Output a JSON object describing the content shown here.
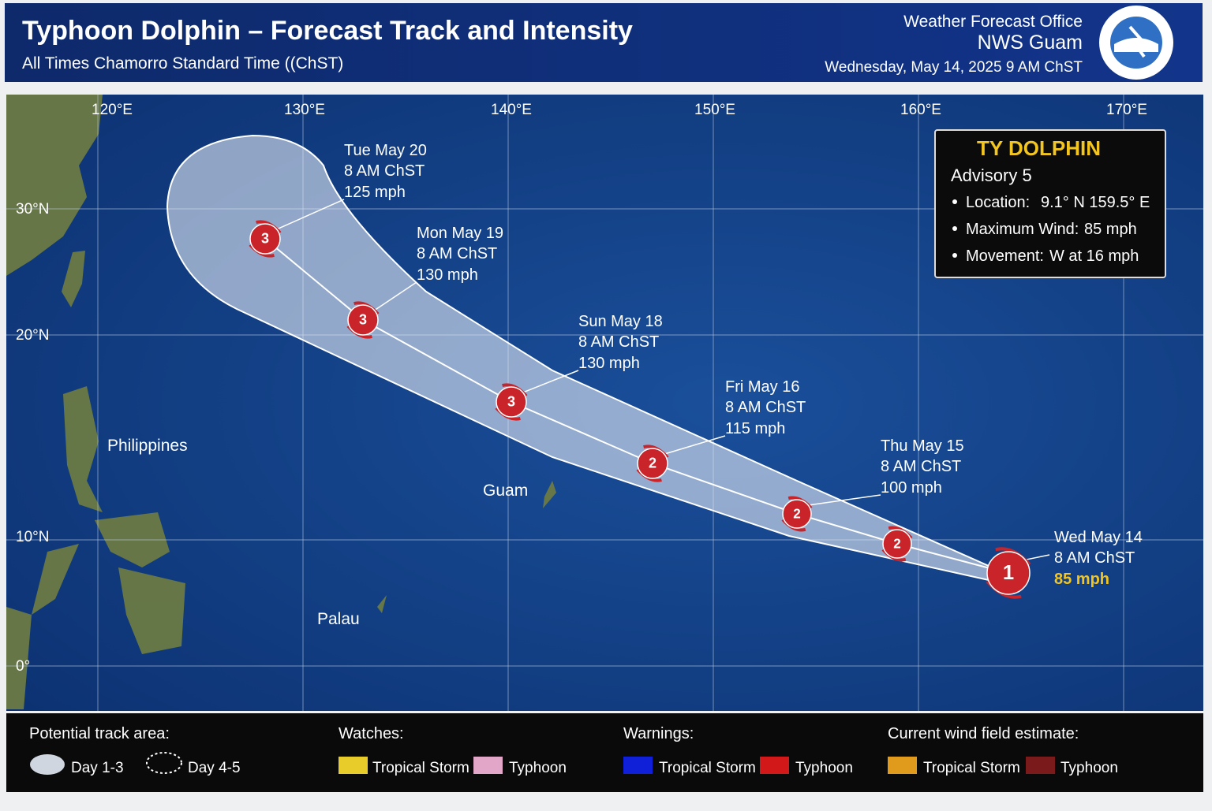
{
  "header": {
    "title": "Typhoon Dolphin – Forecast Track and Intensity",
    "subtitle": "All Times Chamorro Standard Time ((ChST)",
    "office": "Weather Forecast Office",
    "office_name": "NWS Guam",
    "issued": "Wednesday, May 14, 2025 9 AM ChST"
  },
  "map": {
    "lon_labels": [
      "120°E",
      "130°E",
      "140°E",
      "150°E",
      "160°E",
      "170°E"
    ],
    "lat_labels": [
      "30°N",
      "20°N",
      "10°N",
      "0°"
    ],
    "places": [
      "Philippines",
      "Guam",
      "Palau"
    ],
    "points": [
      {
        "category": 1,
        "date": "Wed May 14",
        "time": "8 AM ChST",
        "wind": "85 mph"
      },
      {
        "category": 2
      },
      {
        "category": 2,
        "date": "Thu May 15",
        "time": "8 AM ChST",
        "wind": "100 mph"
      },
      {
        "category": 2,
        "date": "Fri May 16",
        "time": "8 AM ChST",
        "wind": "115 mph"
      },
      {
        "category": 3,
        "date": "Sun May 18",
        "time": "8 AM ChST",
        "wind": "130 mph"
      },
      {
        "category": 3,
        "date": "Mon May 19",
        "time": "8 AM ChST",
        "wind": "130 mph"
      },
      {
        "category": 3,
        "date": "Tue May 20",
        "time": "8 AM ChST",
        "wind": "125 mph"
      }
    ]
  },
  "info": {
    "title": "TY DOLPHIN",
    "advisory": "Advisory 5",
    "items": [
      {
        "label": "Location:",
        "value": "9.1° N 159.5° E"
      },
      {
        "label": "Maximum Wind:",
        "value": "85 mph"
      },
      {
        "label": "Movement:",
        "value": "W at 16 mph"
      }
    ]
  },
  "legend": {
    "groups": [
      {
        "title": "Potential track area:",
        "items": [
          "Day 1-3",
          "Day 4-5"
        ]
      },
      {
        "title": "Watches:",
        "items": [
          "Tropical Storm",
          "Typhoon"
        ]
      },
      {
        "title": "Warnings:",
        "items": [
          "Tropical Storm",
          "Typhoon"
        ]
      },
      {
        "title": "Current wind field estimate:",
        "items": [
          "Tropical Storm",
          "Typhoon"
        ]
      }
    ]
  }
}
